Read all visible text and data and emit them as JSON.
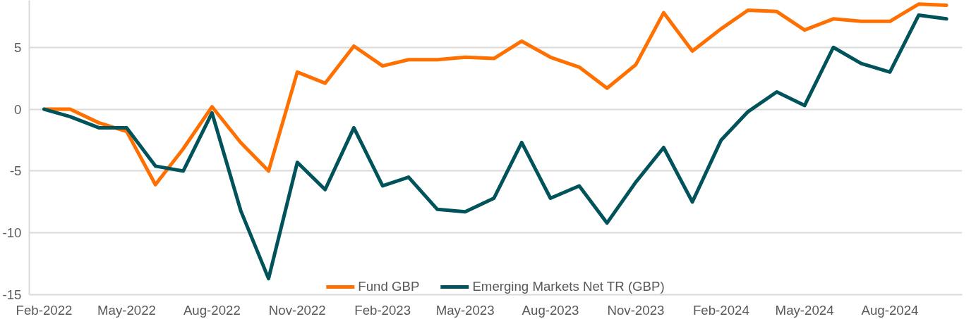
{
  "chart_data": {
    "type": "line",
    "x": [
      "2022-02",
      "2022-03",
      "2022-04",
      "2022-05",
      "2022-06",
      "2022-07",
      "2022-08",
      "2022-09",
      "2022-10",
      "2022-11",
      "2022-12",
      "2023-01",
      "2023-02",
      "2023-03",
      "2023-04",
      "2023-05",
      "2023-06",
      "2023-07",
      "2023-08",
      "2023-09",
      "2023-10",
      "2023-11",
      "2023-12",
      "2024-01",
      "2024-02",
      "2024-03",
      "2024-04",
      "2024-05",
      "2024-06",
      "2024-07",
      "2024-08",
      "2024-09",
      "2024-10"
    ],
    "series": [
      {
        "name": "Fund GBP",
        "color": "#ff7000",
        "values": [
          0,
          0,
          -1.1,
          -1.8,
          -6.1,
          -3.2,
          0.2,
          -2.7,
          -5.0,
          3.0,
          2.1,
          5.1,
          3.5,
          4.0,
          4.0,
          4.2,
          4.1,
          5.5,
          4.2,
          3.4,
          1.7,
          3.6,
          7.8,
          4.7,
          6.5,
          8.0,
          7.9,
          6.4,
          7.3,
          7.1,
          7.1,
          8.5,
          8.4
        ]
      },
      {
        "name": "Emerging Markets Net TR (GBP)",
        "color": "#00535a",
        "values": [
          0,
          -0.6,
          -1.5,
          -1.5,
          -4.6,
          -5.0,
          -0.3,
          -8.2,
          -13.7,
          -4.3,
          -6.5,
          -1.5,
          -6.2,
          -5.5,
          -8.1,
          -8.3,
          -7.2,
          -2.7,
          -7.2,
          -6.2,
          -9.2,
          -5.9,
          -3.1,
          -7.5,
          -2.5,
          -0.2,
          1.4,
          0.3,
          5.0,
          3.7,
          3.0,
          7.6,
          7.3
        ]
      }
    ],
    "xlim": [
      "2022-01-16",
      "2024-10-18"
    ],
    "xticks": [
      {
        "value": "2022-02",
        "label": "Feb-2022"
      },
      {
        "value": "2022-05",
        "label": "May-2022"
      },
      {
        "value": "2022-08",
        "label": "Aug-2022"
      },
      {
        "value": "2022-11",
        "label": "Nov-2022"
      },
      {
        "value": "2023-02",
        "label": "Feb-2023"
      },
      {
        "value": "2023-05",
        "label": "May-2023"
      },
      {
        "value": "2023-08",
        "label": "Aug-2023"
      },
      {
        "value": "2023-11",
        "label": "Nov-2023"
      },
      {
        "value": "2024-02",
        "label": "Feb-2024"
      },
      {
        "value": "2024-05",
        "label": "May-2024"
      },
      {
        "value": "2024-08",
        "label": "Aug-2024"
      }
    ],
    "ylim": [
      -15,
      8.8
    ],
    "yticks": [
      -15,
      -10,
      -5,
      0,
      5
    ],
    "grid": "y",
    "legend": "bottom"
  }
}
